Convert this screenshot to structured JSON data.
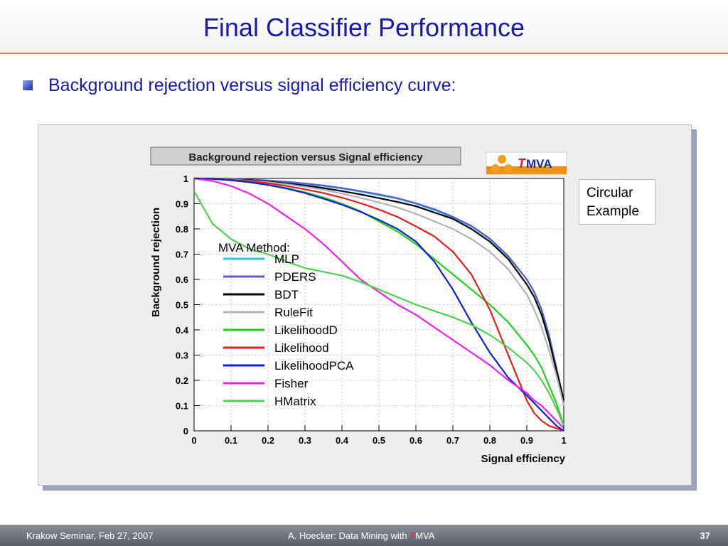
{
  "slide": {
    "title": "Final Classifier Performance",
    "bullet": "Background rejection versus signal efficiency curve:",
    "callout": {
      "line1": "Circular",
      "line2": "Example"
    }
  },
  "footer": {
    "left": "Krakow Seminar, Feb 27, 2007",
    "center_prefix": "A. Hoecker: Data Mining with ",
    "center_t": "T",
    "center_suffix": "MVA",
    "page": "37"
  },
  "logo": {
    "t": "T",
    "rest": "MVA"
  },
  "chart_data": {
    "type": "line",
    "title": "Background rejection versus Signal efficiency",
    "xlabel": "Signal efficiency",
    "ylabel": "Background rejection",
    "xlim": [
      0,
      1
    ],
    "ylim": [
      0,
      1
    ],
    "xticks": [
      "0",
      "0.1",
      "0.2",
      "0.3",
      "0.4",
      "0.5",
      "0.6",
      "0.7",
      "0.8",
      "0.9",
      "1"
    ],
    "yticks": [
      "0",
      "0.1",
      "0.2",
      "0.3",
      "0.4",
      "0.5",
      "0.6",
      "0.7",
      "0.8",
      "0.9",
      "1"
    ],
    "grid": true,
    "legend_title": "MVA Method:",
    "legend_position": "left",
    "x": [
      0,
      0.05,
      0.1,
      0.15,
      0.2,
      0.25,
      0.3,
      0.35,
      0.4,
      0.45,
      0.5,
      0.55,
      0.6,
      0.65,
      0.7,
      0.75,
      0.8,
      0.85,
      0.9,
      0.92,
      0.94,
      0.96,
      0.98,
      1.0
    ],
    "series": [
      {
        "name": "MLP",
        "color": "#1ec8f0",
        "values": [
          1,
          1,
          0.998,
          0.995,
          0.99,
          0.985,
          0.978,
          0.97,
          0.96,
          0.948,
          0.934,
          0.92,
          0.9,
          0.875,
          0.845,
          0.81,
          0.76,
          0.69,
          0.6,
          0.55,
          0.48,
          0.38,
          0.25,
          0.12
        ]
      },
      {
        "name": "PDERS",
        "color": "#5a5ad0",
        "values": [
          1,
          1,
          0.999,
          0.996,
          0.992,
          0.987,
          0.98,
          0.972,
          0.962,
          0.95,
          0.937,
          0.922,
          0.902,
          0.878,
          0.848,
          0.812,
          0.762,
          0.692,
          0.6,
          0.55,
          0.48,
          0.38,
          0.25,
          0.12
        ]
      },
      {
        "name": "BDT",
        "color": "#000000",
        "values": [
          1,
          0.999,
          0.997,
          0.993,
          0.987,
          0.98,
          0.972,
          0.962,
          0.95,
          0.937,
          0.922,
          0.907,
          0.89,
          0.865,
          0.84,
          0.8,
          0.75,
          0.68,
          0.58,
          0.53,
          0.46,
          0.36,
          0.24,
          0.12
        ]
      },
      {
        "name": "RuleFit",
        "color": "#b4b4b4",
        "values": [
          1,
          0.999,
          0.996,
          0.991,
          0.985,
          0.977,
          0.967,
          0.955,
          0.94,
          0.923,
          0.905,
          0.885,
          0.86,
          0.83,
          0.8,
          0.76,
          0.71,
          0.64,
          0.54,
          0.48,
          0.41,
          0.32,
          0.22,
          0.1
        ]
      },
      {
        "name": "LikelihoodD",
        "color": "#20d020",
        "values": [
          1,
          0.998,
          0.993,
          0.985,
          0.975,
          0.962,
          0.945,
          0.925,
          0.9,
          0.87,
          0.83,
          0.79,
          0.74,
          0.68,
          0.62,
          0.56,
          0.5,
          0.43,
          0.34,
          0.3,
          0.25,
          0.18,
          0.11,
          0.02
        ]
      },
      {
        "name": "Likelihood",
        "color": "#e02020",
        "values": [
          1,
          0.999,
          0.995,
          0.989,
          0.981,
          0.97,
          0.957,
          0.942,
          0.924,
          0.902,
          0.877,
          0.848,
          0.81,
          0.77,
          0.71,
          0.62,
          0.48,
          0.3,
          0.12,
          0.07,
          0.04,
          0.02,
          0.01,
          0
        ]
      },
      {
        "name": "LikelihoodPCA",
        "color": "#1020d0",
        "values": [
          1,
          0.998,
          0.993,
          0.985,
          0.974,
          0.96,
          0.942,
          0.92,
          0.896,
          0.868,
          0.836,
          0.8,
          0.75,
          0.67,
          0.56,
          0.43,
          0.31,
          0.21,
          0.14,
          0.11,
          0.08,
          0.05,
          0.02,
          0
        ]
      },
      {
        "name": "Fisher",
        "color": "#f020f0",
        "values": [
          1,
          0.99,
          0.97,
          0.94,
          0.9,
          0.85,
          0.8,
          0.74,
          0.67,
          0.6,
          0.55,
          0.5,
          0.46,
          0.41,
          0.36,
          0.31,
          0.26,
          0.2,
          0.15,
          0.12,
          0.1,
          0.07,
          0.04,
          0.01
        ]
      },
      {
        "name": "HMatrix",
        "color": "#50d050",
        "values": [
          0.95,
          0.82,
          0.76,
          0.72,
          0.7,
          0.67,
          0.645,
          0.63,
          0.615,
          0.59,
          0.56,
          0.53,
          0.5,
          0.475,
          0.45,
          0.42,
          0.38,
          0.33,
          0.27,
          0.24,
          0.2,
          0.15,
          0.09,
          0.02
        ]
      }
    ]
  }
}
